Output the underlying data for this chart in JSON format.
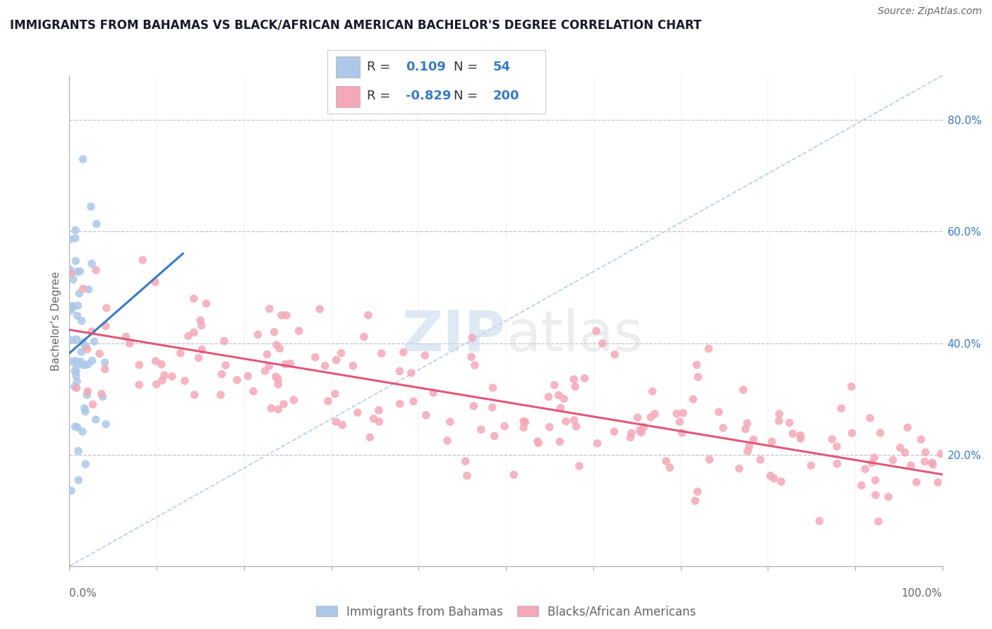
{
  "title": "IMMIGRANTS FROM BAHAMAS VS BLACK/AFRICAN AMERICAN BACHELOR'S DEGREE CORRELATION CHART",
  "source": "Source: ZipAtlas.com",
  "ylabel": "Bachelor’s Degree",
  "xlim": [
    0.0,
    1.0
  ],
  "ylim": [
    0.0,
    0.88
  ],
  "blue_R": 0.109,
  "blue_N": 54,
  "pink_R": -0.829,
  "pink_N": 200,
  "blue_color": "#adc8e8",
  "pink_color": "#f4a8b8",
  "blue_line_color": "#3a7abf",
  "pink_line_color": "#e05878",
  "legend_blue_label": "Immigrants from Bahamas",
  "legend_pink_label": "Blacks/African Americans",
  "watermark_ZIP": "ZIP",
  "watermark_atlas": "atlas",
  "background_color": "#ffffff",
  "grid_color": "#c0c0d0",
  "ytick_labels": [
    "20.0%",
    "40.0%",
    "60.0%",
    "80.0%"
  ],
  "ytick_values": [
    0.2,
    0.4,
    0.6,
    0.8
  ],
  "title_color": "#1a1a2e",
  "axis_label_color": "#666666",
  "legend_blue_color": "#3a7abf",
  "legend_R_color": "#333333"
}
